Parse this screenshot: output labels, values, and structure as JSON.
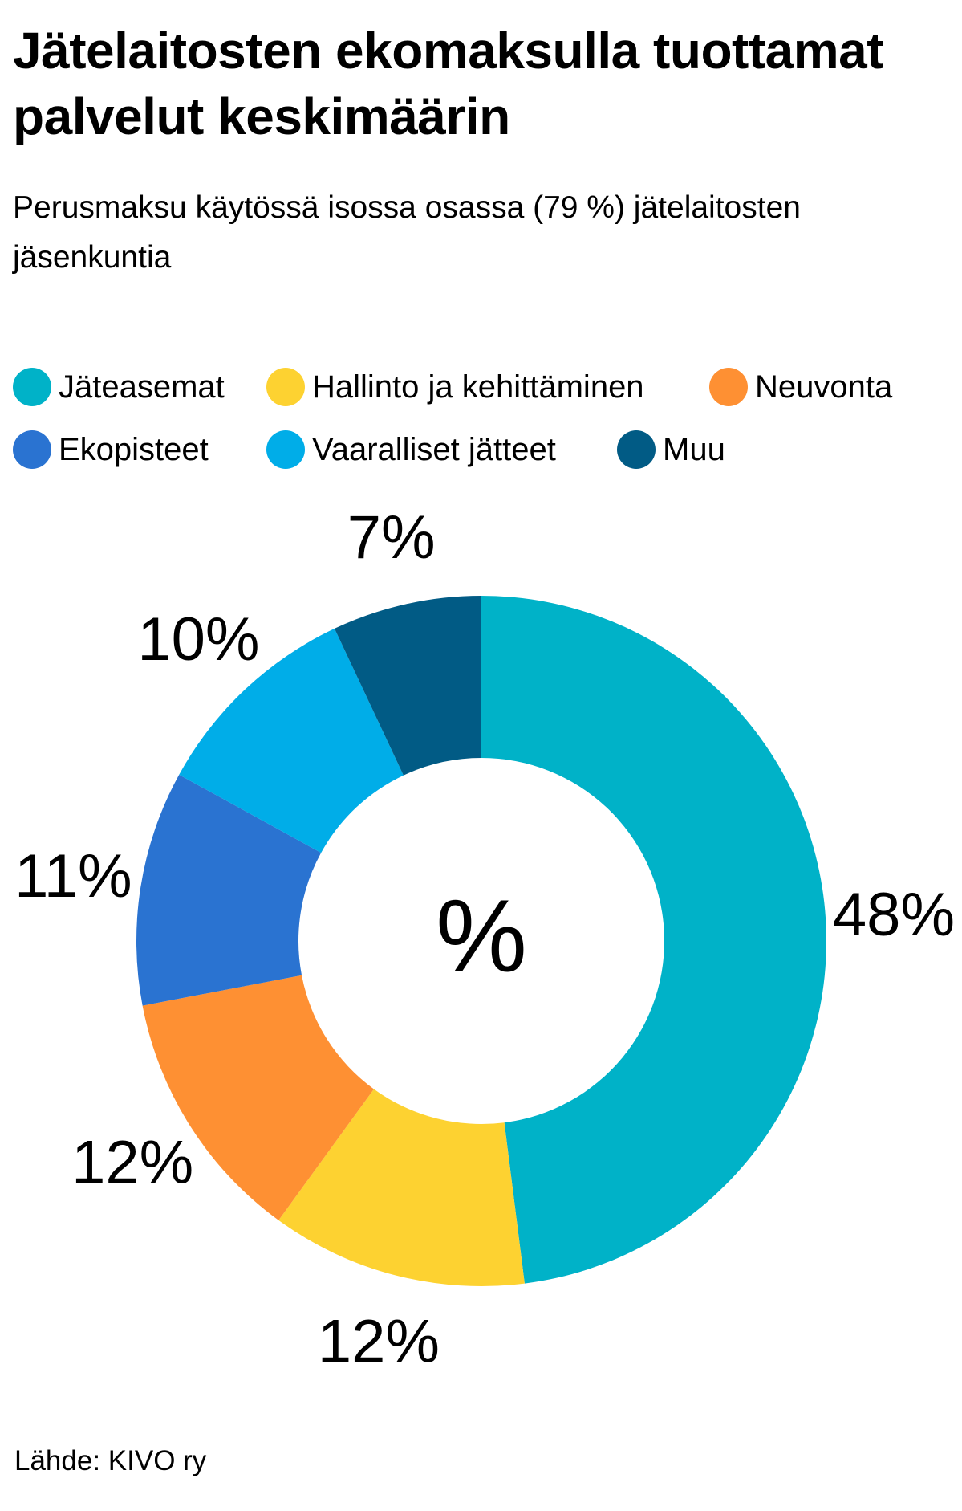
{
  "title": "Jätelaitosten ekomaksulla tuottamat palvelut keskimäärin",
  "subtitle": "Perusmaksu käytössä isossa osassa (79 %) jätelaitosten jäsenkuntia",
  "source": "Lähde: KIVO ry",
  "chart_data": {
    "type": "pie",
    "variant": "donut",
    "center_label": "%",
    "legend_position": "top",
    "slices": [
      {
        "label": "Jäteasemat",
        "value": 48,
        "value_label": "48%",
        "color": "#00b2c8"
      },
      {
        "label": "Hallinto ja kehittäminen",
        "value": 12,
        "value_label": "12%",
        "color": "#fdd231"
      },
      {
        "label": "Neuvonta",
        "value": 12,
        "value_label": "12%",
        "color": "#fe9033"
      },
      {
        "label": "Ekopisteet",
        "value": 11,
        "value_label": "11%",
        "color": "#2a73d1"
      },
      {
        "label": "Vaaralliset jätteet",
        "value": 10,
        "value_label": "10%",
        "color": "#00ade8"
      },
      {
        "label": "Muu",
        "value": 7,
        "value_label": "7%",
        "color": "#015b85"
      }
    ]
  }
}
